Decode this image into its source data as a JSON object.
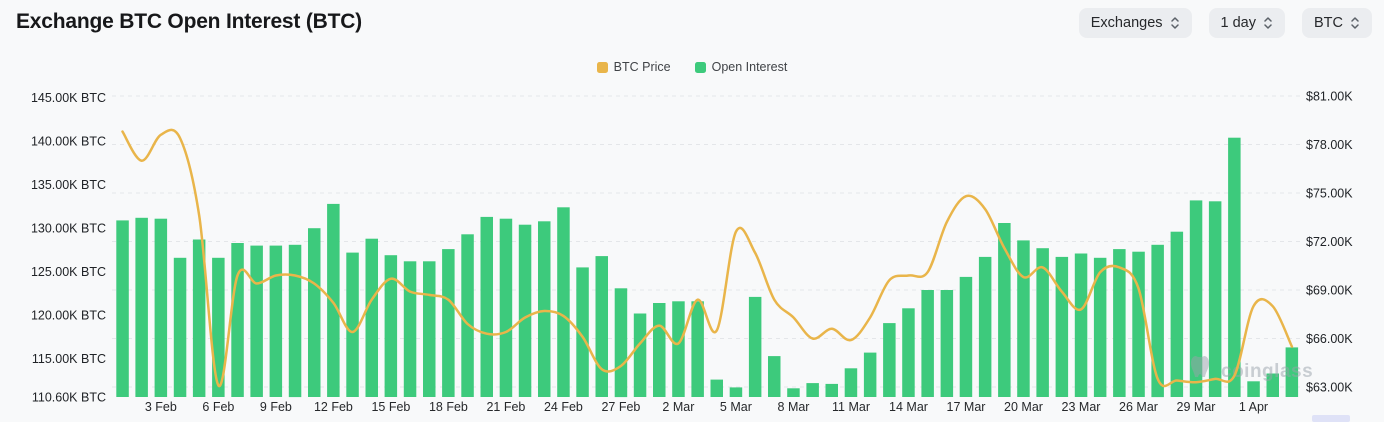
{
  "header": {
    "title": "Exchange BTC Open Interest (BTC)"
  },
  "controls": [
    {
      "label": "Exchanges"
    },
    {
      "label": "1 day"
    },
    {
      "label": "BTC"
    }
  ],
  "legend": [
    {
      "label": "BTC Price",
      "color": "#E9B54A"
    },
    {
      "label": "Open Interest",
      "color": "#3DCA7C"
    }
  ],
  "watermark": "coinglass",
  "chart_data": {
    "type": "bar",
    "title": "Exchange BTC Open Interest (BTC)",
    "grid": "dashed horizontal",
    "legend_position": "top-center",
    "x": [
      "1 Feb",
      "2 Feb",
      "3 Feb",
      "4 Feb",
      "5 Feb",
      "6 Feb",
      "7 Feb",
      "8 Feb",
      "9 Feb",
      "10 Feb",
      "11 Feb",
      "12 Feb",
      "13 Feb",
      "14 Feb",
      "15 Feb",
      "16 Feb",
      "17 Feb",
      "18 Feb",
      "19 Feb",
      "20 Feb",
      "21 Feb",
      "22 Feb",
      "23 Feb",
      "24 Feb",
      "25 Feb",
      "26 Feb",
      "27 Feb",
      "28 Feb",
      "1 Mar",
      "2 Mar",
      "3 Mar",
      "4 Mar",
      "5 Mar",
      "6 Mar",
      "7 Mar",
      "8 Mar",
      "9 Mar",
      "10 Mar",
      "11 Mar",
      "12 Mar",
      "13 Mar",
      "14 Mar",
      "15 Mar",
      "16 Mar",
      "17 Mar",
      "18 Mar",
      "19 Mar",
      "20 Mar",
      "21 Mar",
      "22 Mar",
      "23 Mar",
      "24 Mar",
      "25 Mar",
      "26 Mar",
      "27 Mar",
      "28 Mar",
      "29 Mar",
      "30 Mar",
      "31 Mar",
      "1 Apr",
      "2 Apr",
      "3 Apr"
    ],
    "x_tick_labels": [
      "3 Feb",
      "6 Feb",
      "9 Feb",
      "12 Feb",
      "15 Feb",
      "18 Feb",
      "21 Feb",
      "24 Feb",
      "27 Feb",
      "2 Mar",
      "5 Mar",
      "8 Mar",
      "11 Mar",
      "14 Mar",
      "17 Mar",
      "20 Mar",
      "23 Mar",
      "26 Mar",
      "29 Mar",
      "1 Apr"
    ],
    "series": [
      {
        "name": "Open Interest",
        "type": "bar",
        "axis": "left",
        "unit": "K BTC",
        "color": "#3DCA7C",
        "values": [
          130.9,
          131.2,
          131.1,
          126.6,
          128.7,
          126.6,
          128.3,
          128.0,
          128.0,
          128.1,
          130.0,
          132.8,
          127.2,
          128.8,
          126.9,
          126.2,
          126.2,
          127.6,
          129.3,
          131.3,
          131.1,
          130.4,
          130.8,
          132.4,
          125.5,
          126.8,
          123.1,
          120.2,
          121.4,
          121.6,
          121.6,
          112.6,
          111.7,
          122.1,
          115.3,
          111.6,
          112.2,
          112.1,
          113.9,
          115.7,
          119.1,
          120.8,
          122.9,
          122.9,
          124.4,
          126.7,
          130.6,
          128.6,
          127.7,
          126.7,
          127.1,
          126.6,
          127.6,
          127.3,
          128.1,
          129.6,
          133.2,
          133.1,
          140.4,
          112.4,
          113.3,
          116.3
        ]
      },
      {
        "name": "BTC Price",
        "type": "line",
        "axis": "right",
        "unit": "$K",
        "color": "#E9B54A",
        "values": [
          78.8,
          77.0,
          78.6,
          78.4,
          73.6,
          63.1,
          69.9,
          69.4,
          69.9,
          69.9,
          69.4,
          68.2,
          66.4,
          68.4,
          69.7,
          68.9,
          68.7,
          68.4,
          66.9,
          66.3,
          66.4,
          67.3,
          67.7,
          67.4,
          66.1,
          64.1,
          64.3,
          65.7,
          66.8,
          65.7,
          68.4,
          66.5,
          72.6,
          71.3,
          68.4,
          67.3,
          66.0,
          66.6,
          65.9,
          67.3,
          69.6,
          69.9,
          70.1,
          73.2,
          74.8,
          74.0,
          71.6,
          69.8,
          70.4,
          68.9,
          67.8,
          70.1,
          70.4,
          69.1,
          63.5,
          63.4,
          63.3,
          63.5,
          63.7,
          68.0,
          68.0,
          65.5
        ]
      }
    ],
    "left_axis": {
      "title": "Open Interest",
      "labels": [
        "145.00K BTC",
        "140.00K BTC",
        "135.00K BTC",
        "130.00K BTC",
        "125.00K BTC",
        "120.00K BTC",
        "115.00K BTC",
        "110.60K BTC"
      ],
      "values": [
        145.0,
        140.0,
        135.0,
        130.0,
        125.0,
        120.0,
        115.0,
        110.6
      ]
    },
    "right_axis": {
      "title": "BTC Price",
      "labels": [
        "$81.00K",
        "$78.00K",
        "$75.00K",
        "$72.00K",
        "$69.00K",
        "$66.00K",
        "$63.00K"
      ],
      "values": [
        81,
        78,
        75,
        72,
        69,
        66,
        63
      ]
    }
  }
}
